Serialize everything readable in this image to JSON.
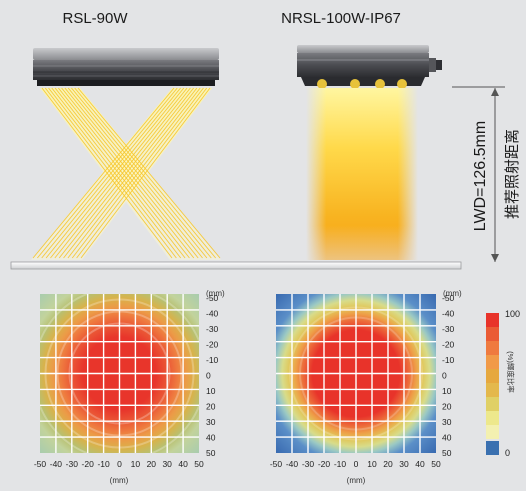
{
  "top": {
    "left_label": "RSL-90W",
    "right_label": "NRSL-100W-IP67",
    "lwd_label": "LWD=126.5mm",
    "lwd_cn": "推荐照射距离"
  },
  "maps": {
    "unit_top": "(mm)",
    "unit_bottom": "(mm)",
    "y_ticks": [
      "-50",
      "-40",
      "-30",
      "-20",
      "-10",
      "0",
      "10",
      "20",
      "30",
      "40",
      "50"
    ],
    "x_ticks": [
      "-50",
      "-40",
      "-30",
      "-20",
      "-10",
      "0",
      "10",
      "20",
      "30",
      "40",
      "50"
    ]
  },
  "legend": {
    "max": "100",
    "min": "0",
    "label": "(%)輝度比率",
    "colors": [
      "#e8332a",
      "#ea5b35",
      "#ef7a3f",
      "#f19a48",
      "#e6a83f",
      "#e4b84c",
      "#e0d066",
      "#ede88c",
      "#f3f0b0",
      "#3a70b0"
    ]
  },
  "chart_data": [
    {
      "type": "heatmap",
      "title": "RSL-90W",
      "xlabel": "(mm)",
      "ylabel": "(mm)",
      "xlim": [
        -50,
        50
      ],
      "ylim": [
        -50,
        50
      ],
      "scale": [
        0,
        100
      ],
      "profile": "center 100%, falling to about 35% at the edges"
    },
    {
      "type": "heatmap",
      "title": "NRSL-100W-IP67",
      "xlabel": "(mm)",
      "ylabel": "(mm)",
      "xlim": [
        -50,
        50
      ],
      "ylim": [
        -50,
        50
      ],
      "scale": [
        0,
        100
      ],
      "profile": "center 100%, falling to about 0% at the corners"
    }
  ]
}
